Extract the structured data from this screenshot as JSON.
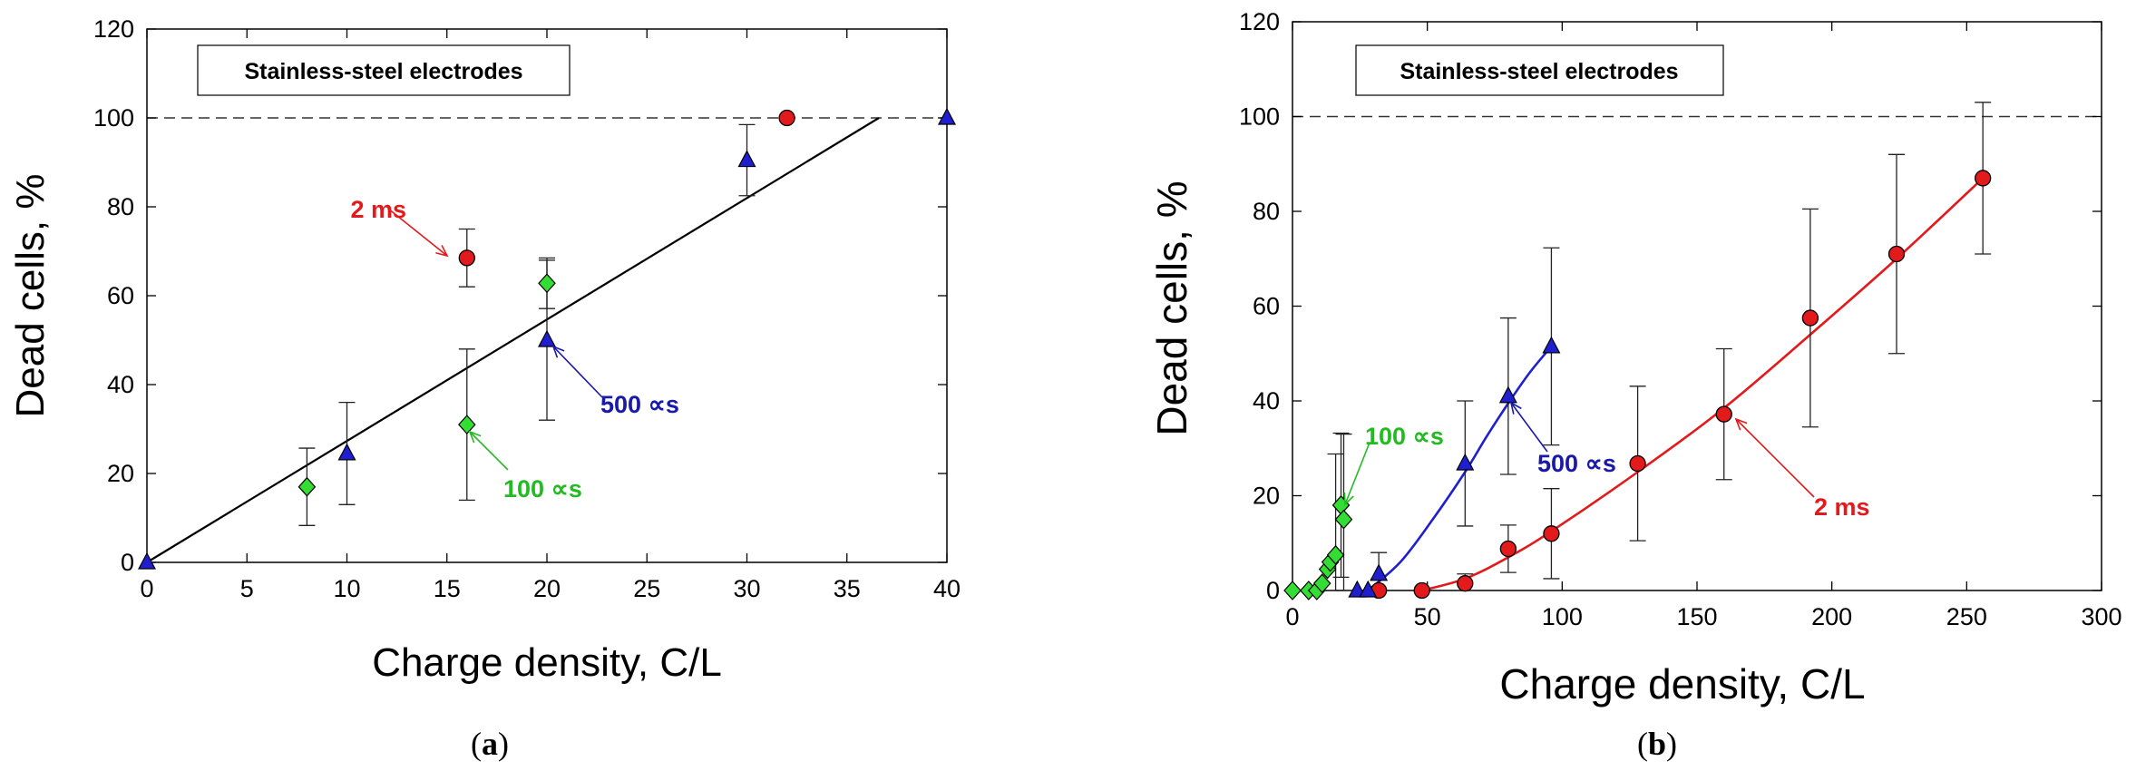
{
  "chart_data": [
    {
      "type": "scatter",
      "panel_label": "a",
      "caption_open": "(",
      "caption_close": ")",
      "title": "Stainless-steel electrodes",
      "xlabel": "Charge density, C/L",
      "ylabel": "Dead cells, %",
      "xlim": [
        0,
        40
      ],
      "ylim": [
        0,
        120
      ],
      "xticks": [
        0,
        5,
        10,
        15,
        20,
        25,
        30,
        35,
        40
      ],
      "yticks": [
        0,
        20,
        40,
        60,
        80,
        100,
        120
      ],
      "reference_line_y": 100,
      "fit_line": {
        "x": [
          0,
          36.6
        ],
        "y": [
          0,
          100
        ],
        "color": "#000000"
      },
      "series": [
        {
          "name": "2 ms",
          "marker": "circle",
          "color": "#e31a1c",
          "x": [
            16,
            32
          ],
          "y": [
            68.5,
            100
          ],
          "err": [
            6.5,
            0
          ]
        },
        {
          "name": "500 ∝s",
          "marker": "triangle",
          "color": "#1f1fd0",
          "x": [
            0,
            10,
            20,
            30,
            40
          ],
          "y": [
            0,
            24.5,
            50,
            90.5,
            100
          ],
          "err": [
            0,
            11.5,
            18,
            8,
            0
          ]
        },
        {
          "name": "100 ∝s",
          "marker": "diamond",
          "color": "#33dd33",
          "x": [
            8,
            16,
            20
          ],
          "y": [
            17,
            31,
            62.8
          ],
          "err": [
            8.7,
            17,
            5.7
          ]
        }
      ],
      "annotations": [
        {
          "text": "2 ms",
          "color": "#e31a1c",
          "series": 0,
          "point": 0
        },
        {
          "text": "500 ∝s",
          "color": "#1a1aa8",
          "series": 1,
          "point": 2
        },
        {
          "text": "100 ∝s",
          "color": "#22bb22",
          "series": 2,
          "point": 1
        }
      ]
    },
    {
      "type": "scatter",
      "panel_label": "b",
      "caption_open": "(",
      "caption_close": ")",
      "title": "Stainless-steel electrodes",
      "xlabel": "Charge density, C/L",
      "ylabel": "Dead cells, %",
      "xlim": [
        0,
        300
      ],
      "ylim": [
        0,
        120
      ],
      "xticks": [
        0,
        50,
        100,
        150,
        200,
        250,
        300
      ],
      "yticks": [
        0,
        20,
        40,
        60,
        80,
        100,
        120
      ],
      "reference_line_y": 100,
      "series": [
        {
          "name": "2 ms",
          "marker": "circle",
          "color": "#e31a1c",
          "x": [
            32,
            48,
            64,
            80,
            96,
            128,
            160,
            192,
            224,
            256
          ],
          "y": [
            0,
            0,
            1.5,
            8.8,
            12,
            26.8,
            37.2,
            57.5,
            71,
            87
          ],
          "err": [
            0,
            0,
            2,
            5,
            9.5,
            16.3,
            13.8,
            23,
            21,
            16
          ],
          "fit": {
            "x": [
              48,
              64,
              80,
              96,
              128,
              160,
              192,
              224,
              256
            ],
            "y": [
              0,
              2.5,
              7,
              12.5,
              25,
              38.5,
              54,
              70,
              87
            ]
          }
        },
        {
          "name": "500 ∝s",
          "marker": "triangle",
          "color": "#1f1fd0",
          "x": [
            24,
            28,
            32,
            64,
            80,
            96
          ],
          "y": [
            0,
            0,
            3.5,
            26.8,
            41,
            51.5
          ],
          "err": [
            0,
            0,
            4.5,
            13.2,
            16.5,
            20.8
          ],
          "fit": {
            "x": [
              28,
              40,
              52,
              64,
              72,
              80,
              88,
              96
            ],
            "y": [
              0,
              6,
              15,
              25,
              32.5,
              39.5,
              46,
              51.5
            ]
          }
        },
        {
          "name": "100 ∝s",
          "marker": "diamond",
          "color": "#33dd33",
          "x": [
            0,
            6,
            9,
            11,
            13,
            14,
            16,
            18,
            19
          ],
          "y": [
            0,
            0,
            0,
            1.5,
            4.5,
            6,
            7.5,
            18,
            15
          ],
          "err": [
            0,
            0,
            0,
            0,
            0,
            0,
            21.3,
            15.2,
            18
          ]
        }
      ],
      "annotations": [
        {
          "text": "100 ∝s",
          "color": "#22bb22",
          "series": 2,
          "point": 7
        },
        {
          "text": "500 ∝s",
          "color": "#1a1aa8",
          "series": 1,
          "point": 4
        },
        {
          "text": "2 ms",
          "color": "#e31a1c",
          "series": 0,
          "point": 6
        }
      ]
    }
  ]
}
